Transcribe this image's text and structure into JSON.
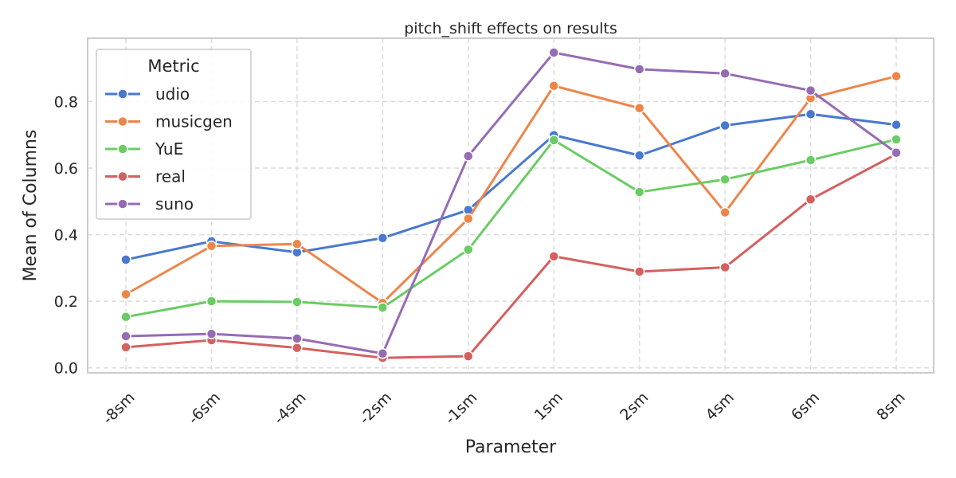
{
  "chart_data": {
    "type": "line",
    "title": "pitch_shift effects on results",
    "xlabel": "Parameter",
    "ylabel": "Mean of Columns",
    "categories": [
      "-8sm",
      "-6sm",
      "-4sm",
      "-2sm",
      "-1sm",
      "1sm",
      "2sm",
      "4sm",
      "6sm",
      "8sm"
    ],
    "ylim": [
      -0.015,
      0.99
    ],
    "yticks": [
      0.0,
      0.2,
      0.4,
      0.6,
      0.8
    ],
    "ytick_labels": [
      "0.0",
      "0.2",
      "0.4",
      "0.6",
      "0.8"
    ],
    "grid": true,
    "legend": {
      "title": "Metric",
      "placement": "top-left"
    },
    "series": [
      {
        "name": "udio",
        "color": "#4878d0",
        "values": [
          0.325,
          0.38,
          0.347,
          0.39,
          0.474,
          0.699,
          0.638,
          0.728,
          0.762,
          0.73
        ]
      },
      {
        "name": "musicgen",
        "color": "#ee854a",
        "values": [
          0.221,
          0.366,
          0.372,
          0.195,
          0.448,
          0.847,
          0.78,
          0.467,
          0.81,
          0.876
        ]
      },
      {
        "name": "YuE",
        "color": "#6acc64",
        "values": [
          0.153,
          0.2,
          0.198,
          0.181,
          0.355,
          0.684,
          0.528,
          0.566,
          0.624,
          0.686
        ]
      },
      {
        "name": "real",
        "color": "#d65f5f",
        "values": [
          0.062,
          0.083,
          0.06,
          0.03,
          0.035,
          0.335,
          0.289,
          0.302,
          0.506,
          0.642
        ]
      },
      {
        "name": "suno",
        "color": "#956cb4",
        "values": [
          0.095,
          0.102,
          0.088,
          0.043,
          0.636,
          0.947,
          0.897,
          0.884,
          0.833,
          0.646
        ]
      }
    ]
  }
}
